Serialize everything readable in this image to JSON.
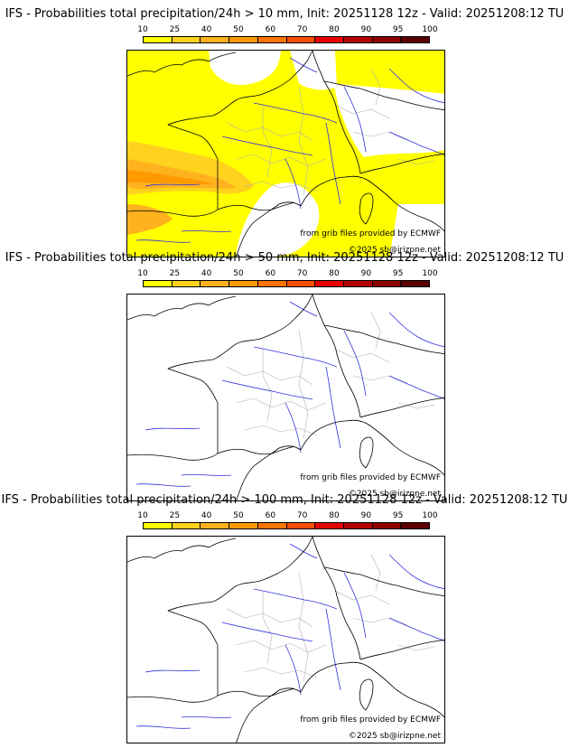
{
  "colors": {
    "scale": [
      "#ffff00",
      "#ffd21e",
      "#ffb21e",
      "#ff9900",
      "#ff7300",
      "#ff4e00",
      "#e60000",
      "#b40000",
      "#8c0000",
      "#5a0000"
    ],
    "borders": "#000000",
    "rivers": "#3030e0",
    "regions": "#b0b0b0"
  },
  "colorbar": {
    "ticks": [
      "10",
      "25",
      "40",
      "50",
      "60",
      "70",
      "80",
      "90",
      "95",
      "100"
    ]
  },
  "panels": [
    {
      "title": "IFS - Probabilities total precipitation/24h > 10 mm, Init: 20251128 12z - Valid: 20251208:12 TU",
      "threshold_mm": 10,
      "source": "from grib files provided by ECMWF",
      "copyright": "©2025 sb@irizpne.net",
      "has_shading": true
    },
    {
      "title": "IFS - Probabilities total precipitation/24h > 50 mm, Init: 20251128 12z - Valid: 20251208:12 TU",
      "threshold_mm": 50,
      "source": "from grib files provided by ECMWF",
      "copyright": "©2025 sb@irizpne.net",
      "has_shading": false
    },
    {
      "title": "IFS - Probabilities total precipitation/24h > 100 mm, Init: 20251128 12z - Valid: 20251208:12 TU",
      "threshold_mm": 100,
      "source": "from grib files provided by ECMWF",
      "copyright": "©2025 sb@irizpne.net",
      "has_shading": false
    }
  ]
}
